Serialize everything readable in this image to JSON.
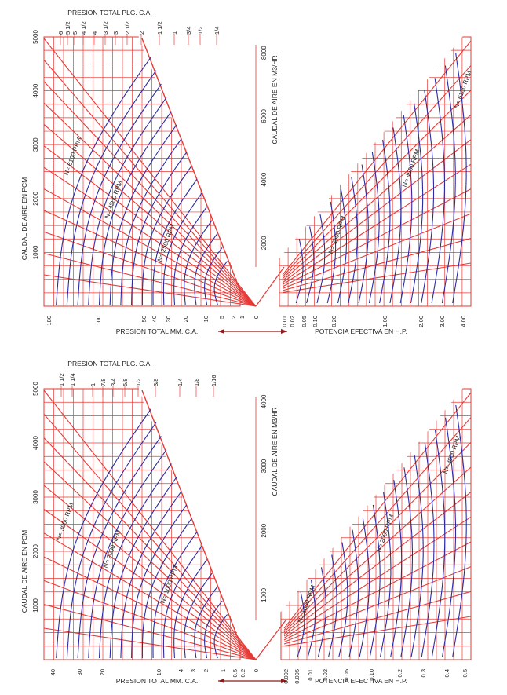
{
  "colors": {
    "grid": "#e53a36",
    "curves": "#2b2ba6",
    "text": "#222222",
    "arrow": "#8b1a1a"
  },
  "chart_data": [
    {
      "type": "line",
      "panel": "top",
      "left": {
        "ylabel": "CAUDAL DE AIRE EN PCM",
        "ylim": [
          0,
          5000
        ],
        "yticks": [
          "1000",
          "2000",
          "3000",
          "4000",
          "5000"
        ],
        "top_title": "PRESION TOTAL PLG. C.A.",
        "top_ticks": [
          "6",
          "5 1/2",
          "5",
          "4 1/2",
          "4",
          "3 1/2",
          "3",
          "2 1/2",
          "2",
          "1 1/2",
          "1",
          "3/4",
          "1/2",
          "1/4"
        ],
        "bottom_title": "PRESION TOTAL MM. C.A.",
        "bottom_ticks": [
          "180",
          "100",
          "50",
          "40",
          "30",
          "20",
          "10",
          "5",
          "2",
          "1",
          "0"
        ],
        "rpm_labels": [
          "N= 6100 RPM",
          "N= 4500 RPM",
          "N= 2500 RPM"
        ]
      },
      "right": {
        "ylabel": "CAUDAL DE AIRE EN M3/HR",
        "ylim": [
          0,
          8500
        ],
        "yticks": [
          "2000",
          "4000",
          "6000",
          "8000"
        ],
        "bottom_title": "POTENCIA EFECTIVA EN H.P.",
        "bottom_ticks": [
          "0.01",
          "0.02",
          "0.05",
          "0.10",
          "0.20",
          "1.00",
          "2.00",
          "3.00",
          "4.00"
        ],
        "rpm_labels": [
          "N= 2500 RPM",
          "N= 4500 RPM",
          "N= 6100 RPM"
        ]
      }
    },
    {
      "type": "line",
      "panel": "bottom",
      "left": {
        "ylabel": "CAUDAL DE AIRE EN PCM",
        "ylim": [
          0,
          5000
        ],
        "yticks": [
          "1000",
          "2000",
          "3000",
          "4000",
          "5000"
        ],
        "top_title": "PRESION TOTAL PLG. C.A.",
        "top_ticks": [
          "1 1/2",
          "1 1/4",
          "1",
          "7/8",
          "3/4",
          "5/8",
          "1/2",
          "3/8",
          "1/4",
          "1/8",
          "1/16"
        ],
        "bottom_title": "PRESION TOTAL MM. C.A.",
        "bottom_ticks": [
          "40",
          "30",
          "20",
          "10",
          "4",
          "3",
          "2",
          "1",
          "0.5",
          "0.2",
          "0"
        ],
        "rpm_labels": [
          "N= 3000 RPM",
          "N= 2000 RPM",
          "N= 1000 RPM"
        ]
      },
      "right": {
        "ylabel": "CAUDAL DE AIRE EN M3/HR",
        "ylim": [
          0,
          4200
        ],
        "yticks": [
          "1000",
          "2000",
          "3000",
          "4000"
        ],
        "bottom_title": "POTENCIA EFECTIVA EN H.P.",
        "bottom_ticks": [
          "0.002",
          "0.005",
          "0.01",
          "0.02",
          "0.05",
          "0.10",
          "0.2",
          "0.3",
          "0.4",
          "0.5"
        ],
        "rpm_labels": [
          "N= 1000 RPM",
          "N= 2000 RPM",
          "N= 3000 RPM"
        ]
      }
    }
  ]
}
